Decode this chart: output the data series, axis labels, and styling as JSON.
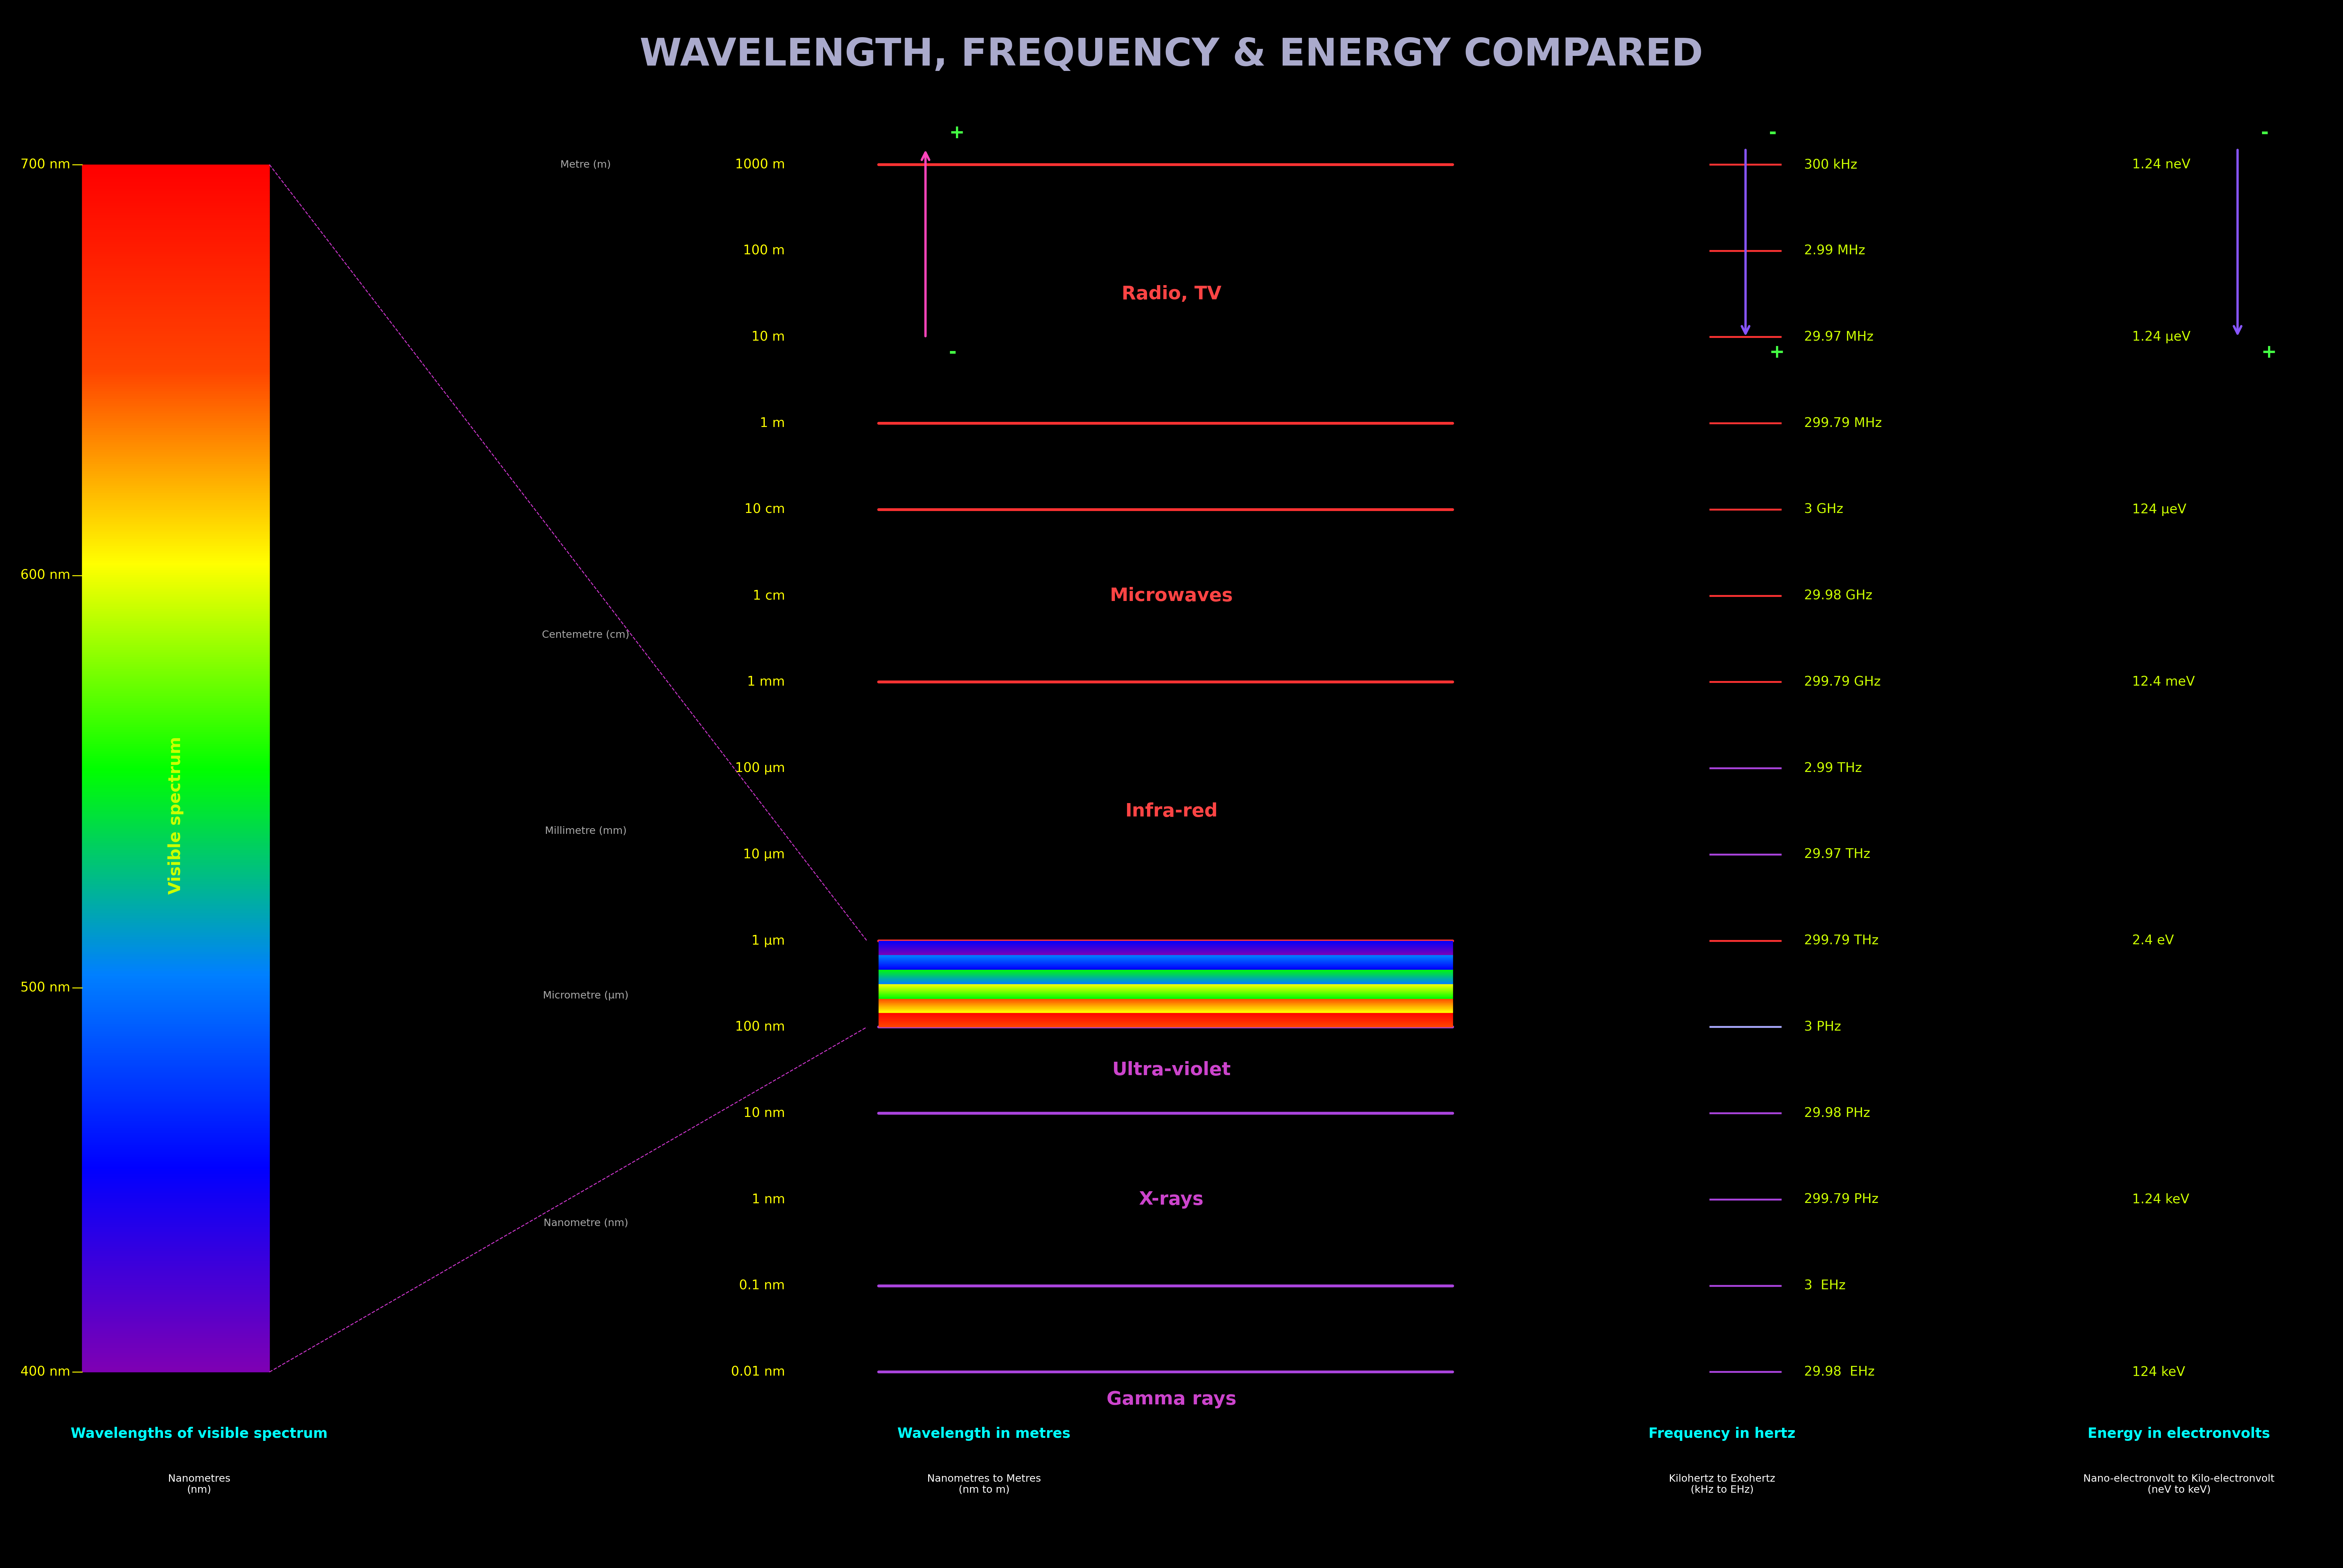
{
  "title": "WAVELENGTH, FREQUENCY & ENERGY COMPARED",
  "title_color": "#aaaacc",
  "bg_color": "#000000",
  "visible_spectrum_label": "Visible spectrum",
  "visible_spectrum_color": "#ccff00",
  "wavelength_col_title": "Wavelengths of visible spectrum",
  "wavelength_col_sub": "Nanometres\n(nm)",
  "wavelength_col_title_color": "#00ffff",
  "wavelength_in_metres_title": "Wavelength in metres",
  "wavelength_in_metres_sub": "Nanometres to Metres\n(nm to m)",
  "wavelength_in_metres_color": "#00ffff",
  "frequency_title": "Frequency in hertz",
  "frequency_sub": "Kilohertz to Exohertz\n(kHz to EHz)",
  "frequency_color": "#00ffff",
  "energy_title": "Energy in electronvolts",
  "energy_sub": "Nano-electronvolt to Kilo-electronvolt\n(neV to keV)",
  "energy_color": "#00ffff",
  "nm_labels": [
    "700 nm",
    "600 nm",
    "500 nm",
    "400 nm"
  ],
  "nm_label_color": "#ffff00",
  "wavelength_scale": [
    "1000 m",
    "100 m",
    "10 m",
    "1 m",
    "10 cm",
    "1 cm",
    "1 mm",
    "100 μm",
    "10 μm",
    "1 μm",
    "100 nm",
    "10 nm",
    "1 nm",
    "0.1 nm",
    "0.01 nm"
  ],
  "wavelength_scale_color": "#ffff00",
  "unit_labels": [
    "Metre (m)",
    "Centemetre (cm)",
    "Millimetre (mm)",
    "Micrometre (μm)",
    "Nanometre (nm)"
  ],
  "unit_label_color": "#aaaaaa",
  "frequency_scale": [
    "300 kHz",
    "2.99 MHz",
    "29.97 MHz",
    "299.79 MHz",
    "3 GHz",
    "29.98 GHz",
    "299.79 GHz",
    "2.99 THz",
    "29.97 THz",
    "299.79 THz",
    "3 PHz",
    "29.98 PHz",
    "299.79 PHz",
    "3  EHz",
    "29.98  EHz"
  ],
  "frequency_scale_color": "#ccff00",
  "energy_scale": [
    "1.24 neV",
    "1.24 μeV",
    "124 μeV",
    "12.4 meV",
    "2.4 eV",
    "1.24 keV",
    "124 keV"
  ],
  "energy_scale_color": "#ccff00",
  "band_labels": [
    "Radio, TV",
    "Microwaves",
    "Infra-red",
    "Ultra-violet",
    "X-rays",
    "Gamma rays"
  ],
  "band_colors": [
    "#ff4444",
    "#ff4444",
    "#ff4444",
    "#cc44cc",
    "#cc44cc",
    "#cc44cc"
  ],
  "radio_color": "#ff4444",
  "microwave_color": "#ff4444",
  "infrared_color": "#ff4444",
  "uv_color": "#cc44cc",
  "xray_color": "#cc44cc",
  "gamma_color": "#cc44cc"
}
